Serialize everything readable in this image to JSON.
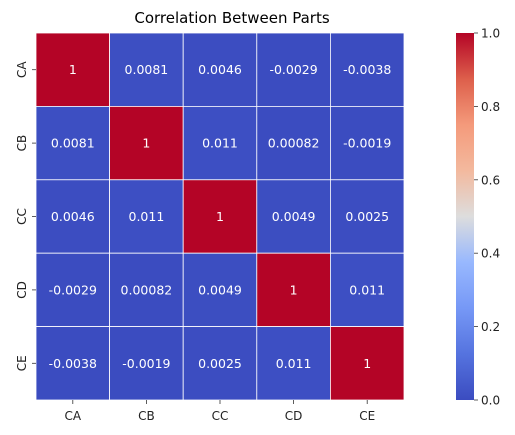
{
  "chart_data": {
    "type": "heatmap",
    "title": "Correlation Between Parts",
    "rows": [
      "CA",
      "CB",
      "CC",
      "CD",
      "CE"
    ],
    "columns": [
      "CA",
      "CB",
      "CC",
      "CD",
      "CE"
    ],
    "values": [
      [
        1,
        0.0081,
        0.0046,
        -0.0029,
        -0.0038
      ],
      [
        0.0081,
        1,
        0.011,
        0.00082,
        -0.0019
      ],
      [
        0.0046,
        0.011,
        1,
        0.0049,
        0.0025
      ],
      [
        -0.0029,
        0.00082,
        0.0049,
        1,
        0.011
      ],
      [
        -0.0038,
        -0.0019,
        0.0025,
        0.011,
        1
      ]
    ],
    "value_labels": [
      [
        "1",
        "0.0081",
        "0.0046",
        "-0.0029",
        "-0.0038"
      ],
      [
        "0.0081",
        "1",
        "0.011",
        "0.00082",
        "-0.0019"
      ],
      [
        "0.0046",
        "0.011",
        "1",
        "0.0049",
        "0.0025"
      ],
      [
        "-0.0029",
        "0.00082",
        "0.0049",
        "1",
        "0.011"
      ],
      [
        "-0.0038",
        "-0.0019",
        "0.0025",
        "0.011",
        "1"
      ]
    ],
    "colormap": "coolwarm",
    "colorbar": {
      "range": [
        0,
        1
      ],
      "ticks": [
        "0.0",
        "0.2",
        "0.4",
        "0.6",
        "0.8",
        "1.0"
      ]
    }
  }
}
